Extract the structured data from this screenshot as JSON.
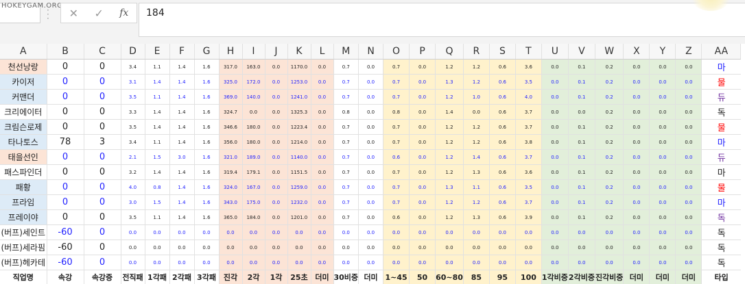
{
  "formula_bar": {
    "watermark": "HOKEYGAM.ORG",
    "cancel_icon": "✕",
    "enter_icon": "✓",
    "fx_label": "fx",
    "value": "184"
  },
  "columns": [
    "A",
    "B",
    "C",
    "D",
    "E",
    "F",
    "G",
    "H",
    "I",
    "J",
    "K",
    "L",
    "M",
    "N",
    "O",
    "P",
    "Q",
    "R",
    "S",
    "T",
    "U",
    "V",
    "W",
    "X",
    "Y",
    "Z",
    "AA"
  ],
  "rows": [
    {
      "name": "천선낭랑",
      "bg": "pk",
      "b": "0",
      "c": "0",
      "nums": [
        "3.4",
        "1.1",
        "1.4",
        "1.6",
        "317.0",
        "163.0",
        "0.0",
        "1170.0",
        "0.0",
        "0.7",
        "0.0",
        "0.7",
        "0.0",
        "1.2",
        "1.2",
        "0.6",
        "3.6",
        "0.0",
        "0.1",
        "0.2",
        "0.0",
        "0.0",
        "0.0"
      ],
      "aa": "마",
      "aa_color": "blue",
      "val_color": "blk"
    },
    {
      "name": "카이저",
      "bg": "bl",
      "b": "0",
      "c": "0",
      "nums": [
        "3.1",
        "1.4",
        "1.4",
        "1.6",
        "325.0",
        "172.0",
        "0.0",
        "1253.0",
        "0.0",
        "0.7",
        "0.0",
        "0.7",
        "0.0",
        "1.3",
        "1.2",
        "0.6",
        "3.5",
        "0.0",
        "0.1",
        "0.2",
        "0.0",
        "0.0",
        "0.0"
      ],
      "aa": "물",
      "aa_color": "red",
      "val_color": "blue"
    },
    {
      "name": "커맨더",
      "bg": "bl",
      "b": "0",
      "c": "0",
      "nums": [
        "3.5",
        "1.1",
        "1.4",
        "1.6",
        "369.0",
        "140.0",
        "0.0",
        "1241.0",
        "0.0",
        "0.7",
        "0.0",
        "0.7",
        "0.0",
        "1.2",
        "1.0",
        "0.6",
        "4.0",
        "0.0",
        "0.1",
        "0.2",
        "0.0",
        "0.0",
        "0.0"
      ],
      "aa": "듀",
      "aa_color": "purple",
      "val_color": "blue"
    },
    {
      "name": "크리에이터",
      "bg": "wh",
      "b": "0",
      "c": "0",
      "nums": [
        "3.3",
        "1.4",
        "1.4",
        "1.6",
        "324.7",
        "0.0",
        "0.0",
        "1325.3",
        "0.0",
        "0.8",
        "0.0",
        "0.8",
        "0.0",
        "1.4",
        "0.0",
        "0.6",
        "3.7",
        "0.0",
        "0.0",
        "0.2",
        "0.0",
        "0.0",
        "0.0"
      ],
      "aa": "독",
      "aa_color": "blk",
      "val_color": "blk"
    },
    {
      "name": "크림슨로제",
      "bg": "bl",
      "b": "0",
      "c": "0",
      "nums": [
        "3.5",
        "1.4",
        "1.4",
        "1.6",
        "346.6",
        "180.0",
        "0.0",
        "1223.4",
        "0.0",
        "0.7",
        "0.0",
        "0.7",
        "0.0",
        "1.2",
        "1.2",
        "0.6",
        "3.7",
        "0.0",
        "0.1",
        "0.2",
        "0.0",
        "0.0",
        "0.0"
      ],
      "aa": "물",
      "aa_color": "red",
      "val_color": "blk"
    },
    {
      "name": "타나토스",
      "bg": "bl",
      "b": "78",
      "c": "3",
      "nums": [
        "3.4",
        "1.1",
        "1.4",
        "1.6",
        "356.0",
        "180.0",
        "0.0",
        "1214.0",
        "0.0",
        "0.7",
        "0.0",
        "0.7",
        "0.0",
        "1.2",
        "1.2",
        "0.6",
        "3.8",
        "0.0",
        "0.1",
        "0.2",
        "0.0",
        "0.0",
        "0.0"
      ],
      "aa": "마",
      "aa_color": "blue",
      "val_color": "blk"
    },
    {
      "name": "태을선인",
      "bg": "pk",
      "b": "0",
      "c": "0",
      "nums": [
        "2.1",
        "1.5",
        "3.0",
        "1.6",
        "321.0",
        "189.0",
        "0.0",
        "1140.0",
        "0.0",
        "0.7",
        "0.0",
        "0.6",
        "0.0",
        "1.2",
        "1.4",
        "0.6",
        "3.7",
        "0.0",
        "0.1",
        "0.2",
        "0.0",
        "0.0",
        "0.0"
      ],
      "aa": "듀",
      "aa_color": "purple",
      "val_color": "blue"
    },
    {
      "name": "패스파인더",
      "bg": "wh",
      "b": "0",
      "c": "0",
      "nums": [
        "3.2",
        "1.4",
        "1.4",
        "1.6",
        "319.4",
        "179.1",
        "0.0",
        "1151.5",
        "0.0",
        "0.7",
        "0.0",
        "0.7",
        "0.0",
        "1.2",
        "1.3",
        "0.6",
        "3.6",
        "0.0",
        "0.1",
        "0.2",
        "0.0",
        "0.0",
        "0.0"
      ],
      "aa": "마",
      "aa_color": "blk",
      "val_color": "blk"
    },
    {
      "name": "패황",
      "bg": "bl",
      "b": "0",
      "c": "0",
      "nums": [
        "4.0",
        "0.8",
        "1.4",
        "1.6",
        "324.0",
        "167.0",
        "0.0",
        "1259.0",
        "0.0",
        "0.7",
        "0.0",
        "0.7",
        "0.0",
        "1.3",
        "1.1",
        "0.6",
        "3.5",
        "0.0",
        "0.1",
        "0.2",
        "0.0",
        "0.0",
        "0.0"
      ],
      "aa": "물",
      "aa_color": "red",
      "val_color": "blue"
    },
    {
      "name": "프라임",
      "bg": "bl",
      "b": "0",
      "c": "0",
      "nums": [
        "3.0",
        "1.5",
        "1.4",
        "1.6",
        "343.0",
        "175.0",
        "0.0",
        "1232.0",
        "0.0",
        "0.7",
        "0.0",
        "0.7",
        "0.0",
        "1.2",
        "1.2",
        "0.6",
        "3.7",
        "0.0",
        "0.1",
        "0.2",
        "0.0",
        "0.0",
        "0.0"
      ],
      "aa": "마",
      "aa_color": "blue",
      "val_color": "blue"
    },
    {
      "name": "프레이야",
      "bg": "bl",
      "b": "0",
      "c": "0",
      "nums": [
        "3.5",
        "1.1",
        "1.4",
        "1.6",
        "365.0",
        "184.0",
        "0.0",
        "1201.0",
        "0.0",
        "0.7",
        "0.0",
        "0.6",
        "0.0",
        "1.2",
        "1.3",
        "0.6",
        "3.9",
        "0.0",
        "0.1",
        "0.2",
        "0.0",
        "0.0",
        "0.0"
      ],
      "aa": "독",
      "aa_color": "purple",
      "val_color": "blk"
    },
    {
      "name": "(버프)세인트",
      "bg": "wh",
      "b": "-60",
      "c": "0",
      "nums": [
        "0.0",
        "0.0",
        "0.0",
        "0.0",
        "0.0",
        "0.0",
        "0.0",
        "0.0",
        "0.0",
        "0.0",
        "0.0",
        "0.0",
        "0.0",
        "0.0",
        "0.0",
        "0.0",
        "0.0",
        "0.0",
        "0.0",
        "0.0",
        "0.0",
        "0.0",
        "0.0"
      ],
      "aa": "독",
      "aa_color": "blk",
      "val_color": "blue"
    },
    {
      "name": "(버프)세라핌",
      "bg": "wh",
      "b": "-60",
      "c": "0",
      "nums": [
        "0.0",
        "0.0",
        "0.0",
        "0.0",
        "0.0",
        "0.0",
        "0.0",
        "0.0",
        "0.0",
        "0.0",
        "0.0",
        "0.0",
        "0.0",
        "0.0",
        "0.0",
        "0.0",
        "0.0",
        "0.0",
        "0.0",
        "0.0",
        "0.0",
        "0.0",
        "0.0"
      ],
      "aa": "독",
      "aa_color": "blk",
      "val_color": "blk"
    },
    {
      "name": "(버프)헤카테",
      "bg": "wh",
      "b": "-60",
      "c": "0",
      "nums": [
        "0.0",
        "0.0",
        "0.0",
        "0.0",
        "0.0",
        "0.0",
        "0.0",
        "0.0",
        "0.0",
        "0.0",
        "0.0",
        "0.0",
        "0.0",
        "0.0",
        "0.0",
        "0.0",
        "0.0",
        "0.0",
        "0.0",
        "0.0",
        "0.0",
        "0.0",
        "0.0"
      ],
      "aa": "독",
      "aa_color": "blk",
      "val_color": "blue"
    }
  ],
  "header_row": [
    {
      "text": "직업명",
      "color": "blk"
    },
    {
      "text": "속강",
      "color": "blk"
    },
    {
      "text": "속강증",
      "color": "blk"
    },
    {
      "text": "전직패",
      "color": "red"
    },
    {
      "text": "1각패",
      "color": "red"
    },
    {
      "text": "2각패",
      "color": "red"
    },
    {
      "text": "3각패",
      "color": "red"
    },
    {
      "text": "진각",
      "color": "blk"
    },
    {
      "text": "2각",
      "color": "blk"
    },
    {
      "text": "1각",
      "color": "blk"
    },
    {
      "text": "25초",
      "color": "blk"
    },
    {
      "text": "더미",
      "color": "blk"
    },
    {
      "text": "30비중",
      "color": "blue"
    },
    {
      "text": "더미",
      "color": "blue"
    },
    {
      "text": "1~45",
      "color": "blk"
    },
    {
      "text": "50",
      "color": "blk"
    },
    {
      "text": "60~80",
      "color": "blk"
    },
    {
      "text": "85",
      "color": "blk"
    },
    {
      "text": "95",
      "color": "blk"
    },
    {
      "text": "100",
      "color": "blk"
    },
    {
      "text": "1각비중",
      "color": "blk"
    },
    {
      "text": "2각비중",
      "color": "blk"
    },
    {
      "text": "진각비중",
      "color": "blk"
    },
    {
      "text": "더미",
      "color": "blk"
    },
    {
      "text": "더미",
      "color": "blk"
    },
    {
      "text": "더미",
      "color": "blk"
    },
    {
      "text": "타입",
      "color": "blk"
    }
  ],
  "colors": {
    "blue": "#2020ff",
    "red": "#ff0000",
    "purple": "#7030a0",
    "pink_bg": "#fce4d6",
    "blue_bg": "#ddebf7",
    "yellow_bg": "#fff2cc",
    "green_bg": "#e2efda"
  }
}
